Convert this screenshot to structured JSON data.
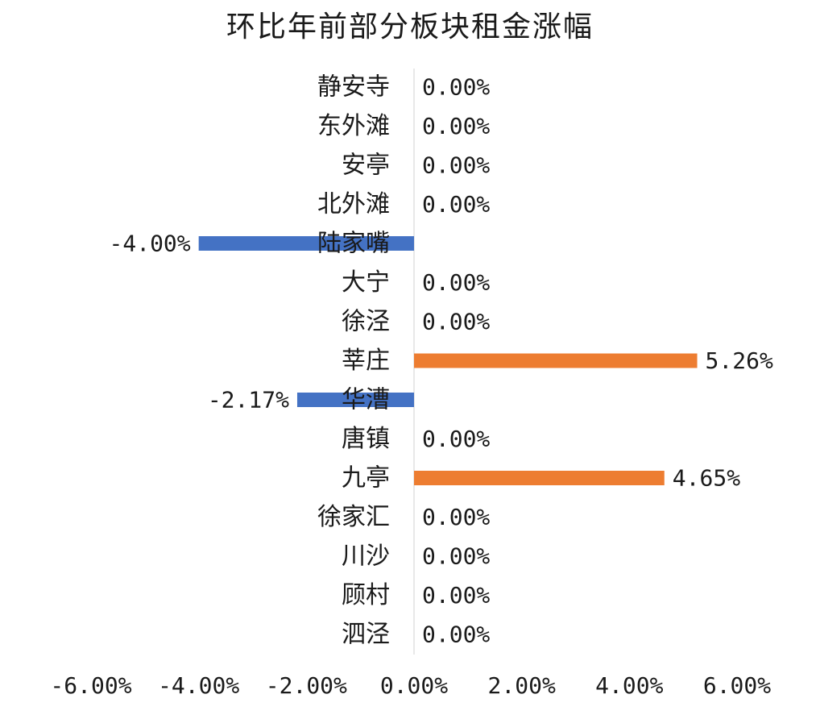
{
  "chart_data": {
    "type": "bar",
    "orientation": "horizontal",
    "title": "环比年前部分板块租金涨幅",
    "categories": [
      "静安寺",
      "东外滩",
      "安亭",
      "北外滩",
      "陆家嘴",
      "大宁",
      "徐泾",
      "莘庄",
      "华漕",
      "唐镇",
      "九亭",
      "徐家汇",
      "川沙",
      "顾村",
      "泗泾"
    ],
    "values": [
      0.0,
      0.0,
      0.0,
      0.0,
      -4.0,
      0.0,
      0.0,
      5.26,
      -2.17,
      0.0,
      4.65,
      0.0,
      0.0,
      0.0,
      0.0
    ],
    "value_labels": [
      "0.00%",
      "0.00%",
      "0.00%",
      "0.00%",
      "-4.00%",
      "0.00%",
      "0.00%",
      "5.26%",
      "-2.17%",
      "0.00%",
      "4.65%",
      "0.00%",
      "0.00%",
      "0.00%",
      "0.00%"
    ],
    "xlim": [
      -6,
      6
    ],
    "x_ticks": [
      -6,
      -4,
      -2,
      0,
      2,
      4,
      6
    ],
    "x_tick_labels": [
      "-6.00%",
      "-4.00%",
      "-2.00%",
      "0.00%",
      "2.00%",
      "4.00%",
      "6.00%"
    ],
    "xlabel": "",
    "ylabel": "",
    "colors": {
      "positive": "#ED7D31",
      "negative": "#4472C4",
      "axis": "#D0D0D0",
      "text": "#1A1A1A"
    },
    "grid": false,
    "legend": "none"
  }
}
